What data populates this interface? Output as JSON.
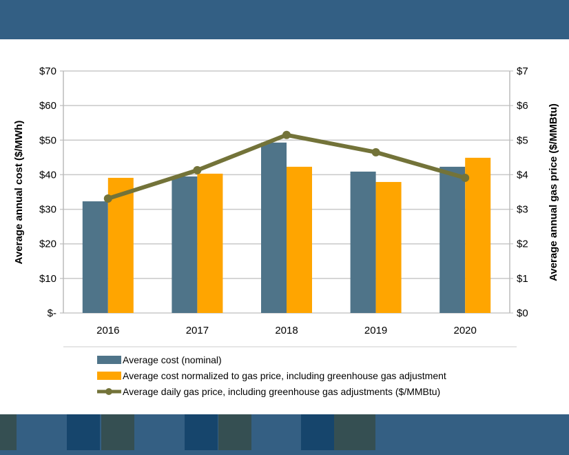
{
  "chart_data": {
    "type": "bar",
    "categories": [
      "2016",
      "2017",
      "2018",
      "2019",
      "2020"
    ],
    "series": [
      {
        "name": "Average cost (nominal)",
        "type": "bar",
        "axis": "left",
        "values": [
          32.3,
          39.5,
          49.3,
          40.9,
          42.3
        ],
        "color": "#4f7489"
      },
      {
        "name": "Average cost normalized to gas price, including greenhouse gas adjustment",
        "type": "bar",
        "axis": "left",
        "values": [
          39.1,
          40.3,
          42.3,
          37.9,
          44.9
        ],
        "color": "#ffa500"
      },
      {
        "name": "Average daily gas price, including greenhouse gas adjustments ($/MMBtu)",
        "type": "line",
        "axis": "right",
        "values": [
          3.31,
          4.13,
          5.15,
          4.65,
          3.91
        ],
        "color": "#737339"
      }
    ],
    "ylabel": "Average annual cost ($/MWh)",
    "y2label": "Average annual gas price ($/MMBtu)",
    "ylim": [
      0,
      70
    ],
    "y2lim": [
      0,
      7
    ],
    "yticks": [
      "$-",
      "$10",
      "$20",
      "$30",
      "$40",
      "$50",
      "$60",
      "$70"
    ],
    "y2ticks": [
      "$0",
      "$1",
      "$2",
      "$3",
      "$4",
      "$5",
      "$6",
      "$7"
    ],
    "grid": true,
    "legend": "bottom"
  }
}
